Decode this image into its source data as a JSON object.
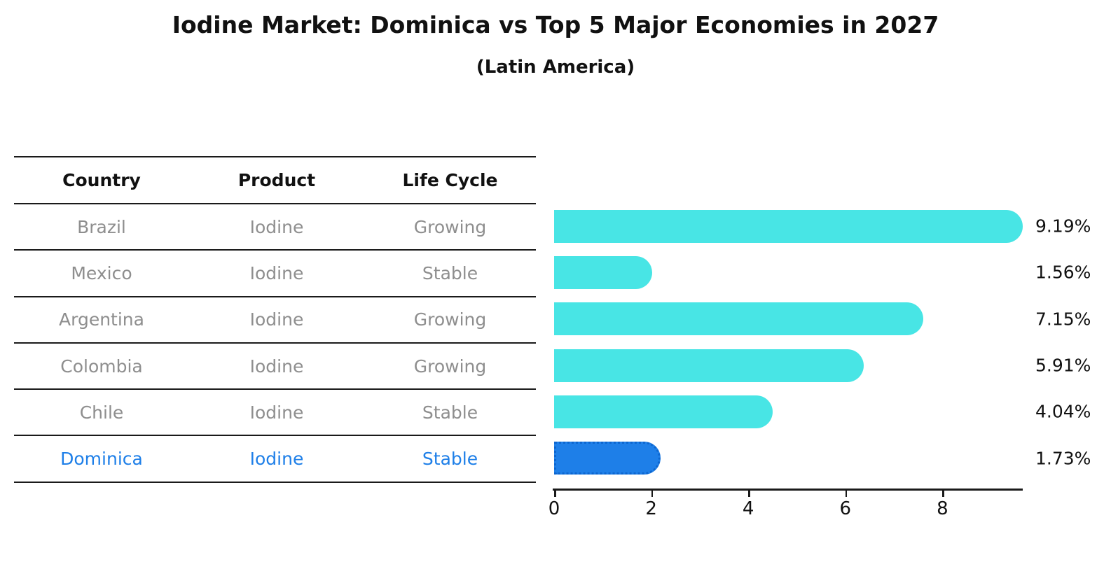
{
  "title": "Iodine Market: Dominica vs Top 5 Major Economies in 2027",
  "subtitle": "(Latin America)",
  "colors": {
    "bar_default": "#48e5e5",
    "bar_highlight": "#1e7fe8",
    "highlight_text": "#1e7fe8",
    "row_text": "#8e8e8e",
    "header_text": "#111111",
    "line": "#1a1a1a"
  },
  "table": {
    "headers": [
      "Country",
      "Product",
      "Life Cycle"
    ],
    "rows": [
      {
        "country": "Brazil",
        "product": "Iodine",
        "life_cycle": "Growing",
        "highlight": false
      },
      {
        "country": "Mexico",
        "product": "Iodine",
        "life_cycle": "Stable",
        "highlight": false
      },
      {
        "country": "Argentina",
        "product": "Iodine",
        "life_cycle": "Growing",
        "highlight": false
      },
      {
        "country": "Colombia",
        "product": "Iodine",
        "life_cycle": "Growing",
        "highlight": false
      },
      {
        "country": "Chile",
        "product": "Iodine",
        "life_cycle": "Stable",
        "highlight": false
      },
      {
        "country": "Dominica",
        "product": "Iodine",
        "life_cycle": "Stable",
        "highlight": true
      }
    ]
  },
  "chart_data": {
    "type": "bar",
    "orientation": "horizontal",
    "title": "Iodine Market: Dominica vs Top 5 Major Economies in 2027",
    "subtitle": "(Latin America)",
    "categories": [
      "Brazil",
      "Mexico",
      "Argentina",
      "Colombia",
      "Chile",
      "Dominica"
    ],
    "values": [
      9.19,
      1.56,
      7.15,
      5.91,
      4.04,
      1.73
    ],
    "value_labels": [
      "9.19%",
      "1.56%",
      "7.15%",
      "5.91%",
      "4.04%",
      "1.73%"
    ],
    "highlight_index": 5,
    "xlabel": "",
    "ylabel": "",
    "xticks": [
      0,
      2,
      4,
      6,
      8
    ],
    "xtick_labels": [
      "0",
      "2",
      "4",
      "6",
      "8"
    ],
    "xlim": [
      0,
      9.65
    ],
    "grid": false,
    "legend": false
  }
}
